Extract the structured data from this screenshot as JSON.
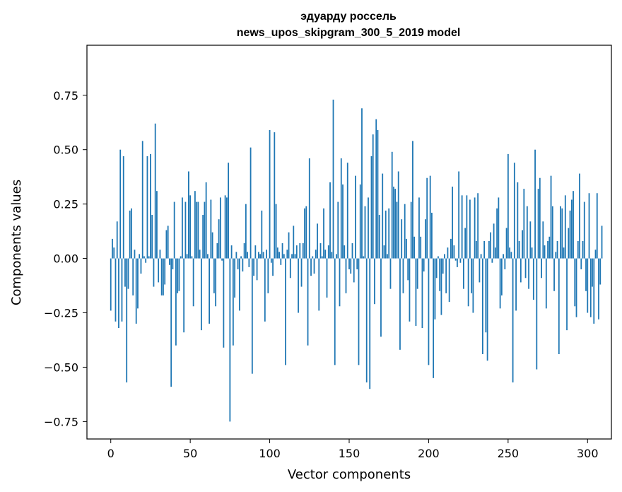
{
  "chart_data": {
    "type": "bar",
    "title_line1": "эдуарду россель",
    "title_line2": "news_upos_skipgram_300_5_2019 model",
    "xlabel": "Vector components",
    "ylabel": "Components values",
    "xlim": [
      -15,
      315
    ],
    "ylim": [
      -0.83,
      0.98
    ],
    "xticks": [
      0,
      50,
      100,
      150,
      200,
      250,
      300
    ],
    "yticks": [
      -0.75,
      -0.5,
      -0.25,
      0.0,
      0.25,
      0.5,
      0.75
    ],
    "xtick_labels": [
      "0",
      "50",
      "100",
      "150",
      "200",
      "250",
      "300"
    ],
    "ytick_labels": [
      "−0.75",
      "−0.50",
      "−0.25",
      "0.00",
      "0.25",
      "0.50",
      "0.75"
    ],
    "bar_color": "#1f77b4",
    "grid": false,
    "values": [
      -0.24,
      0.09,
      0.05,
      -0.29,
      0.17,
      -0.32,
      0.5,
      -0.29,
      0.47,
      -0.13,
      -0.57,
      -0.14,
      0.22,
      0.23,
      -0.17,
      0.04,
      -0.3,
      -0.23,
      0.02,
      -0.07,
      0.54,
      0.01,
      -0.02,
      0.47,
      0.01,
      0.48,
      0.2,
      -0.13,
      0.62,
      0.31,
      -0.11,
      0.04,
      -0.17,
      -0.17,
      -0.12,
      0.13,
      0.15,
      -0.03,
      -0.59,
      -0.05,
      0.26,
      -0.4,
      -0.16,
      -0.15,
      0.01,
      0.28,
      -0.34,
      0.26,
      0.02,
      0.4,
      0.29,
      0.01,
      -0.22,
      0.31,
      0.26,
      0.26,
      0.04,
      -0.33,
      0.2,
      0.26,
      0.35,
      0.02,
      -0.3,
      0.27,
      0.12,
      -0.16,
      -0.22,
      0.07,
      0.18,
      0.28,
      -0.01,
      -0.41,
      0.29,
      0.28,
      0.44,
      -0.75,
      0.06,
      -0.4,
      -0.18,
      0.03,
      -0.05,
      -0.24,
      0.01,
      -0.06,
      0.07,
      0.25,
      0.03,
      -0.04,
      0.51,
      -0.53,
      -0.08,
      0.06,
      -0.1,
      0.03,
      0.02,
      0.22,
      0.03,
      -0.29,
      0.04,
      -0.16,
      0.59,
      -0.02,
      -0.08,
      0.58,
      0.25,
      0.05,
      0.03,
      -0.03,
      0.07,
      0.02,
      -0.49,
      0.04,
      0.12,
      -0.09,
      0.02,
      0.15,
      0.02,
      0.06,
      -0.25,
      0.07,
      -0.13,
      0.07,
      0.23,
      0.24,
      -0.4,
      0.46,
      -0.08,
      0.01,
      -0.07,
      0.04,
      0.16,
      -0.24,
      0.07,
      0.01,
      0.23,
      0.04,
      -0.18,
      0.06,
      0.35,
      0.03,
      0.73,
      -0.49,
      0.02,
      0.26,
      -0.22,
      0.46,
      0.34,
      0.06,
      -0.16,
      0.44,
      -0.05,
      -0.07,
      0.07,
      -0.11,
      0.38,
      -0.05,
      -0.49,
      0.34,
      0.69,
      0.01,
      0.24,
      -0.57,
      0.28,
      -0.6,
      0.47,
      0.57,
      -0.21,
      0.64,
      0.59,
      0.2,
      -0.36,
      0.39,
      0.06,
      0.22,
      0.02,
      0.23,
      -0.14,
      0.49,
      0.33,
      0.32,
      0.26,
      0.4,
      -0.42,
      0.18,
      -0.16,
      0.25,
      0.09,
      -0.1,
      -0.29,
      0.26,
      0.54,
      0.1,
      -0.31,
      -0.14,
      0.28,
      0.1,
      -0.32,
      -0.06,
      0.18,
      0.37,
      -0.49,
      0.38,
      0.21,
      -0.55,
      -0.28,
      -0.09,
      0.01,
      -0.15,
      -0.26,
      -0.07,
      0.02,
      -0.16,
      0.05,
      -0.2,
      0.09,
      0.33,
      0.06,
      -0.01,
      -0.04,
      0.4,
      -0.02,
      0.29,
      -0.14,
      0.14,
      0.29,
      -0.22,
      0.27,
      -0.16,
      -0.25,
      0.28,
      0.08,
      0.3,
      -0.11,
      0.02,
      -0.44,
      0.08,
      -0.34,
      -0.47,
      0.08,
      0.12,
      -0.02,
      0.16,
      0.05,
      0.23,
      0.28,
      -0.23,
      -0.17,
      0.02,
      -0.05,
      0.14,
      0.48,
      0.05,
      0.03,
      -0.57,
      0.44,
      -0.24,
      0.35,
      0.08,
      -0.11,
      0.13,
      0.32,
      -0.09,
      0.24,
      -0.14,
      0.17,
      0.05,
      -0.19,
      0.5,
      -0.51,
      0.32,
      0.37,
      -0.09,
      0.17,
      0.06,
      -0.23,
      0.08,
      0.1,
      0.38,
      0.24,
      -0.15,
      0.03,
      0.08,
      -0.44,
      0.24,
      0.23,
      0.05,
      0.29,
      -0.33,
      0.14,
      0.22,
      0.27,
      0.31,
      -0.22,
      -0.27,
      0.08,
      0.39,
      -0.05,
      0.08,
      0.26,
      -0.15,
      -0.25,
      0.3,
      -0.27,
      -0.13,
      -0.3,
      0.04,
      0.3,
      -0.28,
      -0.12,
      0.15
    ]
  }
}
